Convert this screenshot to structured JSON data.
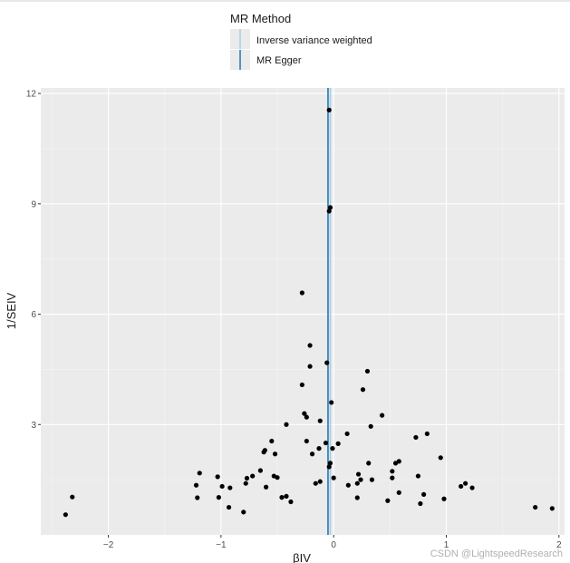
{
  "chart_data": {
    "type": "scatter",
    "title": "",
    "xlabel": "βIV",
    "ylabel": "1/SEIV",
    "xlim": [
      -2.6,
      2.05
    ],
    "ylim": [
      0.0,
      12.15
    ],
    "xticks": [
      -2,
      -1,
      0,
      1,
      2
    ],
    "yticks": [
      3,
      6,
      9,
      12
    ],
    "grid": true,
    "legend": {
      "title": "MR Method",
      "placement": "top",
      "entries": [
        {
          "name": "Inverse variance weighted",
          "color": "#a6cee3"
        },
        {
          "name": "MR Egger",
          "color": "#1f78b4"
        }
      ]
    },
    "vlines": [
      {
        "method": "Inverse variance weighted",
        "x": -0.03,
        "color": "#a6cee3"
      },
      {
        "method": "MR Egger",
        "x": -0.05,
        "color": "#1f78b4"
      }
    ],
    "points": [
      [
        -2.38,
        0.55
      ],
      [
        -2.32,
        1.03
      ],
      [
        -1.22,
        1.35
      ],
      [
        -1.21,
        1.01
      ],
      [
        -1.19,
        1.68
      ],
      [
        -1.03,
        1.58
      ],
      [
        -1.02,
        1.02
      ],
      [
        -0.99,
        1.32
      ],
      [
        -0.93,
        0.75
      ],
      [
        -0.92,
        1.28
      ],
      [
        -0.8,
        0.62
      ],
      [
        -0.78,
        1.4
      ],
      [
        -0.77,
        1.54
      ],
      [
        -0.72,
        1.6
      ],
      [
        -0.65,
        1.75
      ],
      [
        -0.62,
        2.25
      ],
      [
        -0.61,
        2.3
      ],
      [
        -0.6,
        1.3
      ],
      [
        -0.55,
        2.55
      ],
      [
        -0.53,
        1.6
      ],
      [
        -0.52,
        2.2
      ],
      [
        -0.5,
        1.56
      ],
      [
        -0.46,
        1.02
      ],
      [
        -0.42,
        1.05
      ],
      [
        -0.42,
        3.0
      ],
      [
        -0.38,
        0.9
      ],
      [
        -0.28,
        6.58
      ],
      [
        -0.28,
        4.08
      ],
      [
        -0.26,
        3.3
      ],
      [
        -0.24,
        3.2
      ],
      [
        -0.24,
        2.55
      ],
      [
        -0.21,
        5.15
      ],
      [
        -0.21,
        4.58
      ],
      [
        -0.19,
        2.2
      ],
      [
        -0.16,
        1.4
      ],
      [
        -0.13,
        2.35
      ],
      [
        -0.12,
        3.1
      ],
      [
        -0.12,
        1.45
      ],
      [
        -0.07,
        2.5
      ],
      [
        -0.06,
        4.68
      ],
      [
        -0.04,
        11.55
      ],
      [
        -0.04,
        8.8
      ],
      [
        -0.03,
        8.9
      ],
      [
        -0.04,
        1.85
      ],
      [
        -0.03,
        1.95
      ],
      [
        -0.02,
        3.6
      ],
      [
        -0.01,
        2.35
      ],
      [
        0.0,
        1.55
      ],
      [
        0.04,
        2.48
      ],
      [
        0.12,
        2.75
      ],
      [
        0.13,
        1.35
      ],
      [
        0.21,
        1.01
      ],
      [
        0.21,
        1.4
      ],
      [
        0.22,
        1.65
      ],
      [
        0.24,
        1.5
      ],
      [
        0.26,
        3.95
      ],
      [
        0.3,
        4.45
      ],
      [
        0.31,
        1.95
      ],
      [
        0.33,
        2.95
      ],
      [
        0.34,
        1.5
      ],
      [
        0.43,
        3.25
      ],
      [
        0.48,
        0.93
      ],
      [
        0.52,
        1.73
      ],
      [
        0.52,
        1.55
      ],
      [
        0.55,
        1.95
      ],
      [
        0.58,
        1.15
      ],
      [
        0.58,
        2.0
      ],
      [
        0.73,
        2.65
      ],
      [
        0.75,
        1.6
      ],
      [
        0.77,
        0.85
      ],
      [
        0.8,
        1.1
      ],
      [
        0.83,
        2.75
      ],
      [
        0.95,
        2.1
      ],
      [
        0.98,
        0.98
      ],
      [
        1.13,
        1.32
      ],
      [
        1.17,
        1.4
      ],
      [
        1.23,
        1.28
      ],
      [
        1.79,
        0.75
      ],
      [
        1.94,
        0.72
      ]
    ]
  },
  "watermark": "CSDN @LightspeedResearch"
}
